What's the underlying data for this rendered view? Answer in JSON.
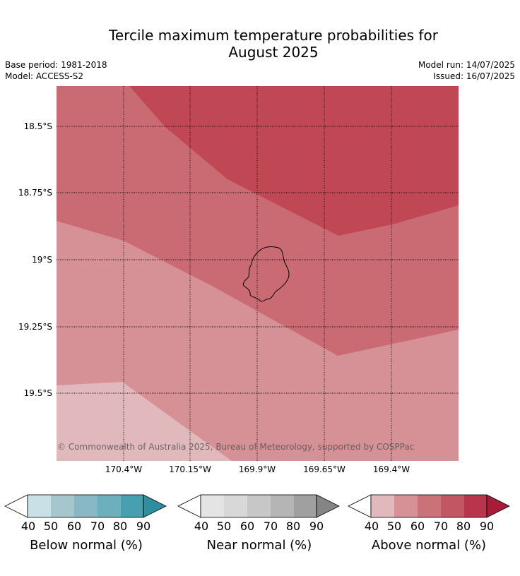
{
  "title_line1": "Tercile maximum temperature probabilities for",
  "title_line2": "August 2025",
  "base_period": "Base period: 1981-2018",
  "model": "Model: ACCESS-S2",
  "model_run": "Model run: 14/07/2025",
  "issued": "Issued: 16/07/2025",
  "copyright": "© Commonwealth of Australia 2025, Bureau of Meteorology, supported by COSPPac",
  "lon_labels": [
    "170.4°W",
    "170.15°W",
    "169.9°W",
    "169.65°W",
    "169.4°W"
  ],
  "lat_labels": [
    "18.5°S",
    "18.75°S",
    "19°S",
    "19.25°S",
    "19.5°S"
  ],
  "legend": {
    "ticks": [
      "40",
      "50",
      "60",
      "70",
      "80",
      "90"
    ],
    "below": {
      "label": "Below normal (%)",
      "colors": [
        "#c8e0e6",
        "#a6c6cd",
        "#89b7c3",
        "#6eafbd",
        "#47a0b0",
        "#2e8ea0"
      ]
    },
    "near": {
      "label": "Near normal (%)",
      "colors": [
        "#e4e4e4",
        "#d8d8d8",
        "#c7c7c7",
        "#b5b5b5",
        "#a0a0a0",
        "#858585"
      ]
    },
    "above": {
      "label": "Above normal (%)",
      "colors": [
        "#e1b9bd",
        "#d69196",
        "#cb7279",
        "#c25663",
        "#b9354b",
        "#a81c3a"
      ]
    }
  },
  "map_colors": {
    "prob_40_50": "#e1b9bd",
    "prob_50_60": "#d69196",
    "prob_60_70": "#ca6b74",
    "prob_70_80": "#c04855"
  }
}
